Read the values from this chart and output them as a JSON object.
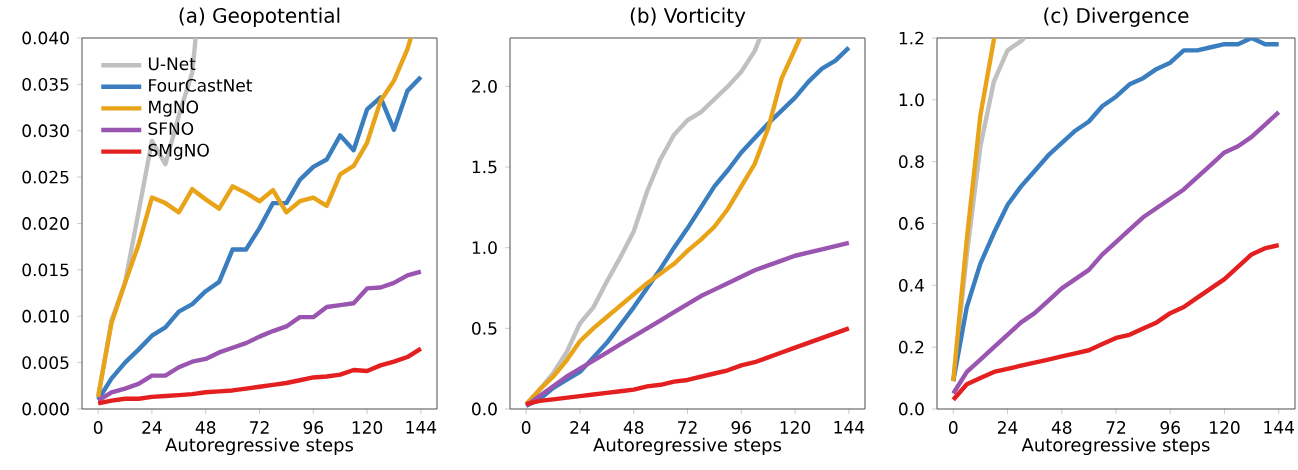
{
  "chart_data": [
    {
      "type": "line",
      "title": "(a) Geopotential",
      "xlabel": "Autoregressive steps",
      "legend": "top left",
      "line_style": "solid",
      "x": [
        0,
        6,
        12,
        18,
        24,
        30,
        36,
        42,
        48,
        54,
        60,
        66,
        72,
        78,
        84,
        90,
        96,
        102,
        108,
        114,
        120,
        126,
        132,
        138,
        144
      ],
      "xlim": [
        -7.2,
        151.2
      ],
      "xticks": [
        0,
        24,
        48,
        72,
        96,
        120,
        144
      ],
      "ylim": [
        0,
        0.04
      ],
      "yticks": [
        {
          "value": 0,
          "label": "0.000"
        },
        {
          "value": 0.005,
          "label": "0.005"
        },
        {
          "value": 0.01,
          "label": "0.010"
        },
        {
          "value": 0.015,
          "label": "0.015"
        },
        {
          "value": 0.02,
          "label": "0.020"
        },
        {
          "value": 0.025,
          "label": "0.025"
        },
        {
          "value": 0.03,
          "label": "0.030"
        },
        {
          "value": 0.035,
          "label": "0.035"
        },
        {
          "value": 0.04,
          "label": "0.040"
        }
      ],
      "series": [
        {
          "name": "U-Net",
          "color": "#c0c0c0",
          "x": [
            0,
            6,
            12,
            18,
            24,
            30,
            36,
            42,
            43.5
          ],
          "values": [
            0.0013,
            0.0096,
            0.0136,
            0.0212,
            0.0289,
            0.0264,
            0.0316,
            0.0363,
            0.04
          ]
        },
        {
          "name": "FourCastNet",
          "color": "#3a7ebf",
          "values": [
            0.001,
            0.0033,
            0.005,
            0.0064,
            0.0079,
            0.0088,
            0.0105,
            0.0113,
            0.0127,
            0.0137,
            0.0172,
            0.0172,
            0.0195,
            0.0222,
            0.0222,
            0.0247,
            0.0261,
            0.0269,
            0.0295,
            0.0279,
            0.0323,
            0.0336,
            0.0301,
            0.0343,
            0.0358
          ]
        },
        {
          "name": "MgNO",
          "color": "#e9a318",
          "x": [
            0,
            6,
            12,
            18,
            24,
            30,
            36,
            42,
            48,
            54,
            60,
            66,
            72,
            78,
            84,
            90,
            96,
            102,
            108,
            114,
            120,
            126,
            132,
            138,
            139.5
          ],
          "values": [
            0.0013,
            0.0093,
            0.0136,
            0.0177,
            0.0228,
            0.0222,
            0.0212,
            0.0237,
            0.0226,
            0.0216,
            0.024,
            0.0233,
            0.0224,
            0.0236,
            0.0212,
            0.0224,
            0.0228,
            0.0219,
            0.0253,
            0.0262,
            0.0287,
            0.0332,
            0.0354,
            0.0388,
            0.04
          ]
        },
        {
          "name": "SFNO",
          "color": "#9a55b0",
          "values": [
            0.0009,
            0.0018,
            0.0022,
            0.0027,
            0.0036,
            0.0036,
            0.0045,
            0.0051,
            0.0054,
            0.0061,
            0.0066,
            0.0071,
            0.0078,
            0.0084,
            0.0089,
            0.0099,
            0.0099,
            0.011,
            0.0112,
            0.0114,
            0.013,
            0.0131,
            0.0136,
            0.0144,
            0.0148
          ]
        },
        {
          "name": "SMgNO",
          "color": "#e3201f",
          "values": [
            0.0006,
            0.0009,
            0.0011,
            0.0011,
            0.0013,
            0.0014,
            0.0015,
            0.0016,
            0.0018,
            0.0019,
            0.002,
            0.0022,
            0.0024,
            0.0026,
            0.0028,
            0.0031,
            0.0034,
            0.0035,
            0.0037,
            0.0042,
            0.0041,
            0.0047,
            0.0051,
            0.0056,
            0.0065
          ]
        }
      ]
    },
    {
      "type": "line",
      "title": "(b) Vorticity",
      "xlabel": "Autoregressive steps",
      "line_style": "solid",
      "x": [
        0,
        6,
        12,
        18,
        24,
        30,
        36,
        42,
        48,
        54,
        60,
        66,
        72,
        78,
        84,
        90,
        96,
        102,
        108,
        114,
        120,
        126,
        132,
        138,
        144
      ],
      "xlim": [
        -7.2,
        151.2
      ],
      "xticks": [
        0,
        24,
        48,
        72,
        96,
        120,
        144
      ],
      "ylim": [
        0,
        2.3
      ],
      "yticks": [
        {
          "value": 0,
          "label": "0.0"
        },
        {
          "value": 0.5,
          "label": "0.5"
        },
        {
          "value": 1,
          "label": "1.0"
        },
        {
          "value": 1.5,
          "label": "1.5"
        },
        {
          "value": 2,
          "label": "2.0"
        }
      ],
      "series": [
        {
          "color": "#c0c0c0",
          "x": [
            0,
            6,
            12,
            18,
            24,
            30,
            36,
            42,
            48,
            54,
            60,
            66,
            72,
            78,
            84,
            90,
            96,
            102,
            104.3
          ],
          "values": [
            0.03,
            0.12,
            0.22,
            0.35,
            0.53,
            0.63,
            0.79,
            0.94,
            1.1,
            1.35,
            1.55,
            1.7,
            1.79,
            1.84,
            1.92,
            2.0,
            2.09,
            2.22,
            2.3
          ]
        },
        {
          "color": "#3a7ebf",
          "values": [
            0.02,
            0.06,
            0.13,
            0.18,
            0.23,
            0.32,
            0.41,
            0.52,
            0.63,
            0.75,
            0.87,
            1.0,
            1.12,
            1.25,
            1.38,
            1.48,
            1.59,
            1.68,
            1.77,
            1.85,
            1.93,
            2.03,
            2.11,
            2.16,
            2.24
          ]
        },
        {
          "color": "#e9a318",
          "x": [
            0,
            6,
            12,
            18,
            24,
            30,
            36,
            42,
            48,
            54,
            60,
            66,
            72,
            78,
            84,
            90,
            96,
            102,
            108,
            114,
            122.2
          ],
          "values": [
            0.03,
            0.12,
            0.2,
            0.3,
            0.42,
            0.5,
            0.57,
            0.64,
            0.71,
            0.78,
            0.84,
            0.9,
            0.98,
            1.05,
            1.13,
            1.24,
            1.38,
            1.52,
            1.74,
            2.05,
            2.3
          ]
        },
        {
          "color": "#9a55b0",
          "values": [
            0.02,
            0.08,
            0.14,
            0.2,
            0.25,
            0.3,
            0.35,
            0.4,
            0.45,
            0.5,
            0.55,
            0.6,
            0.65,
            0.7,
            0.74,
            0.78,
            0.82,
            0.86,
            0.89,
            0.92,
            0.95,
            0.97,
            0.99,
            1.01,
            1.03
          ]
        },
        {
          "color": "#e3201f",
          "values": [
            0.03,
            0.05,
            0.06,
            0.07,
            0.08,
            0.09,
            0.1,
            0.11,
            0.12,
            0.14,
            0.15,
            0.17,
            0.18,
            0.2,
            0.22,
            0.24,
            0.27,
            0.29,
            0.32,
            0.35,
            0.38,
            0.41,
            0.44,
            0.47,
            0.5
          ]
        }
      ]
    },
    {
      "type": "line",
      "title": "(c) Divergence",
      "xlabel": "Autoregressive steps",
      "line_style": "solid",
      "x": [
        0,
        6,
        12,
        18,
        24,
        30,
        36,
        42,
        48,
        54,
        60,
        66,
        72,
        78,
        84,
        90,
        96,
        102,
        108,
        114,
        120,
        126,
        132,
        138,
        144
      ],
      "xlim": [
        -7.2,
        151.2
      ],
      "xticks": [
        0,
        24,
        48,
        72,
        96,
        120,
        144
      ],
      "ylim": [
        0,
        1.2
      ],
      "yticks": [
        {
          "value": 0,
          "label": "0.0"
        },
        {
          "value": 0.2,
          "label": "0.2"
        },
        {
          "value": 0.4,
          "label": "0.4"
        },
        {
          "value": 0.6,
          "label": "0.6"
        },
        {
          "value": 0.8,
          "label": "0.8"
        },
        {
          "value": 1,
          "label": "1.0"
        },
        {
          "value": 1.2,
          "label": "1.2"
        }
      ],
      "series": [
        {
          "color": "#c0c0c0",
          "x": [
            0,
            6,
            12,
            18,
            24,
            30,
            31.4
          ],
          "values": [
            0.09,
            0.5,
            0.85,
            1.06,
            1.16,
            1.19,
            1.2
          ]
        },
        {
          "color": "#3a7ebf",
          "values": [
            0.09,
            0.33,
            0.47,
            0.57,
            0.66,
            0.72,
            0.77,
            0.82,
            0.86,
            0.9,
            0.93,
            0.98,
            1.01,
            1.05,
            1.07,
            1.1,
            1.12,
            1.16,
            1.16,
            1.17,
            1.18,
            1.18,
            1.2,
            1.18,
            1.18
          ]
        },
        {
          "color": "#e9a318",
          "x": [
            0,
            6,
            12,
            18.1
          ],
          "values": [
            0.09,
            0.55,
            0.95,
            1.2
          ]
        },
        {
          "color": "#9a55b0",
          "values": [
            0.05,
            0.12,
            0.16,
            0.2,
            0.24,
            0.28,
            0.31,
            0.35,
            0.39,
            0.42,
            0.45,
            0.5,
            0.54,
            0.58,
            0.62,
            0.65,
            0.68,
            0.71,
            0.75,
            0.79,
            0.83,
            0.85,
            0.88,
            0.92,
            0.96
          ]
        },
        {
          "color": "#e3201f",
          "values": [
            0.03,
            0.08,
            0.1,
            0.12,
            0.13,
            0.14,
            0.15,
            0.16,
            0.17,
            0.18,
            0.19,
            0.21,
            0.23,
            0.24,
            0.26,
            0.28,
            0.31,
            0.33,
            0.36,
            0.39,
            0.42,
            0.46,
            0.5,
            0.52,
            0.53
          ]
        }
      ]
    }
  ]
}
